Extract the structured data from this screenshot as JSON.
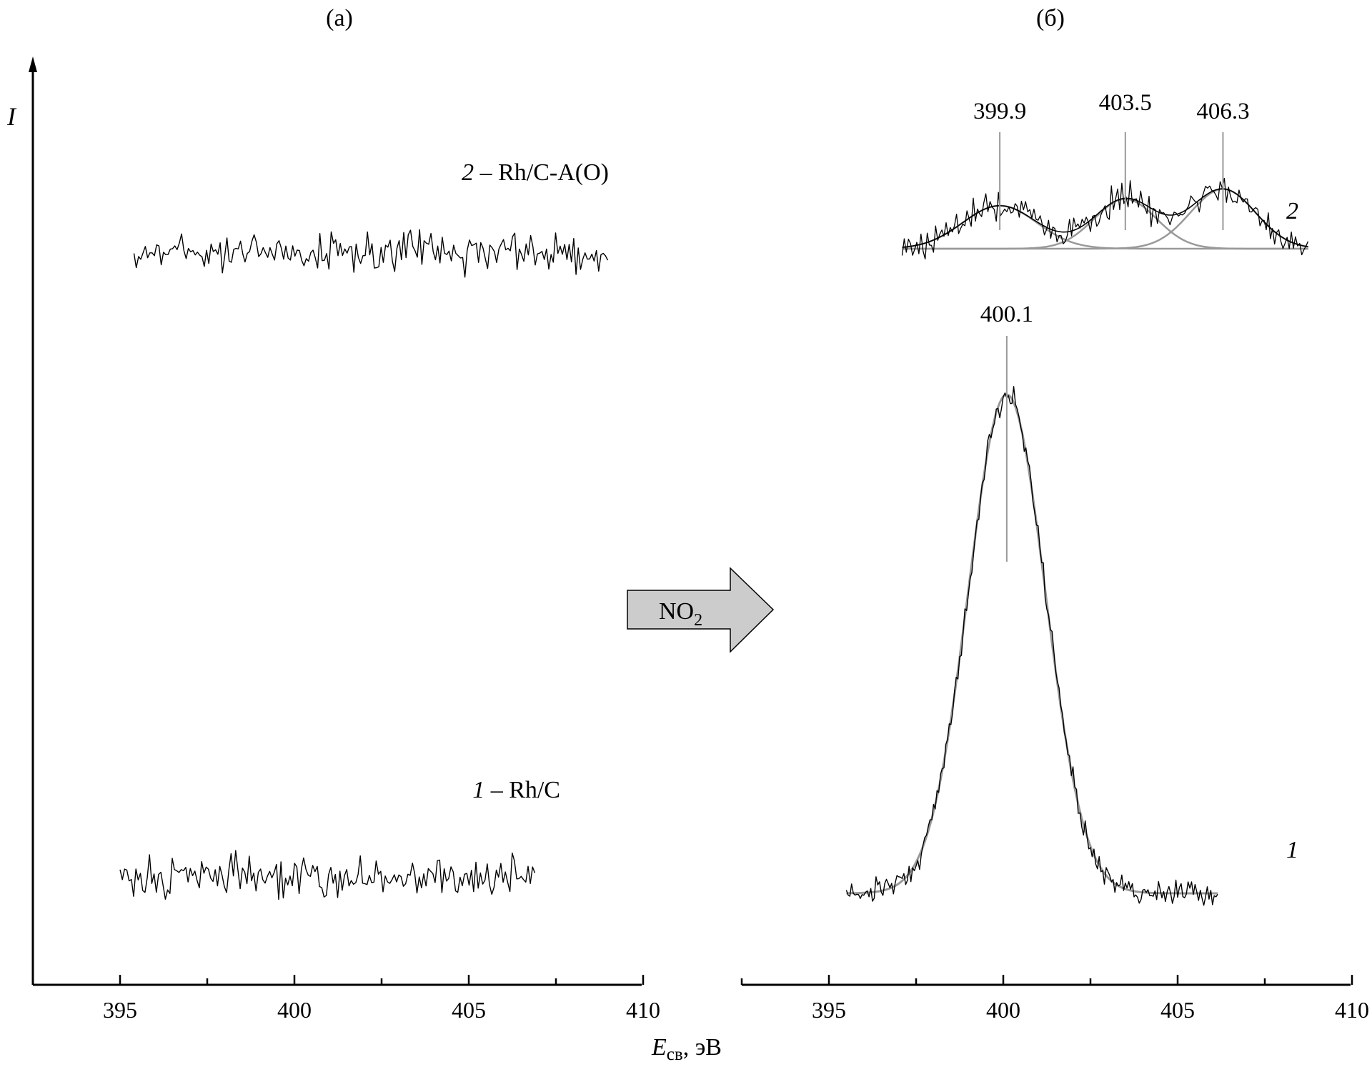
{
  "panels": {
    "a": "(а)",
    "b": "(б)"
  },
  "y_axis_label": "I",
  "x_axis_title": {
    "symbol": "E",
    "subscript": "св",
    "unit": ", эВ"
  },
  "arrow": {
    "label": "NO",
    "subscript": "2",
    "fill": "#cccccc"
  },
  "colors": {
    "raw_spectrum": "#000000",
    "fit_component": "#999999",
    "peak_marker": "#999999"
  },
  "chart_data": [
    {
      "type": "line",
      "panel": "(а)",
      "xlabel": "Eсв, эВ",
      "ylabel": "I",
      "xlim": [
        392.5,
        410
      ],
      "xticks": [
        395,
        400,
        405,
        410
      ],
      "grid": false,
      "series": [
        {
          "name": "2 – Rh/C-A(O)",
          "label_number": "2",
          "label_text": " – Rh/C-A(O)",
          "x_start": 395.4,
          "x_end": 409.0,
          "noise_only": true,
          "baseline": "upper"
        },
        {
          "name": "1 – Rh/C",
          "label_number": "1",
          "label_text": " – Rh/C",
          "x_start": 395.0,
          "x_end": 406.9,
          "noise_only": true,
          "baseline": "lower"
        }
      ]
    },
    {
      "type": "line",
      "panel": "(б)",
      "xlabel": "Eсв, эВ",
      "ylabel": "I",
      "xlim": [
        392.5,
        410
      ],
      "xticks": [
        395,
        400,
        405,
        410
      ],
      "grid": false,
      "series": [
        {
          "name": "1",
          "label_number": "1",
          "x_start": 395.5,
          "x_end": 406.2,
          "peaks": [
            {
              "center": 400.1,
              "label": "400.1",
              "relative_height": 1.0,
              "fwhm": 2.6
            }
          ]
        },
        {
          "name": "2",
          "label_number": "2",
          "x_start": 397.1,
          "x_end": 408.8,
          "peaks": [
            {
              "center": 399.9,
              "label": "399.9",
              "relative_height": 0.13,
              "fwhm": 2.5
            },
            {
              "center": 403.5,
              "label": "403.5",
              "relative_height": 0.15,
              "fwhm": 2.1
            },
            {
              "center": 406.3,
              "label": "406.3",
              "relative_height": 0.18,
              "fwhm": 2.2
            }
          ]
        }
      ]
    }
  ]
}
